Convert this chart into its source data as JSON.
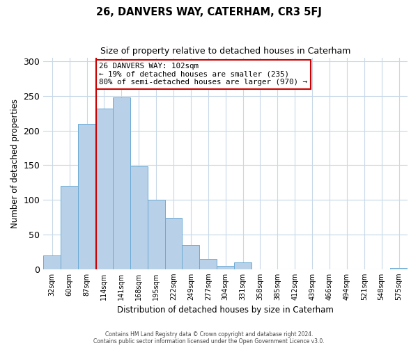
{
  "title": "26, DANVERS WAY, CATERHAM, CR3 5FJ",
  "subtitle": "Size of property relative to detached houses in Caterham",
  "xlabel": "Distribution of detached houses by size in Caterham",
  "ylabel": "Number of detached properties",
  "bar_labels": [
    "32sqm",
    "60sqm",
    "87sqm",
    "114sqm",
    "141sqm",
    "168sqm",
    "195sqm",
    "222sqm",
    "249sqm",
    "277sqm",
    "304sqm",
    "331sqm",
    "358sqm",
    "385sqm",
    "412sqm",
    "439sqm",
    "466sqm",
    "494sqm",
    "521sqm",
    "548sqm",
    "575sqm"
  ],
  "bar_values": [
    20,
    120,
    210,
    232,
    248,
    148,
    100,
    74,
    35,
    15,
    5,
    10,
    0,
    0,
    0,
    0,
    0,
    0,
    0,
    0,
    2
  ],
  "bar_color": "#b8d0e8",
  "bar_edge_color": "#6aaad4",
  "vline_color": "#cc0000",
  "annotation_text": "26 DANVERS WAY: 102sqm\n← 19% of detached houses are smaller (235)\n80% of semi-detached houses are larger (970) →",
  "annotation_box_color": "#ffffff",
  "annotation_box_edge_color": "#cc0000",
  "ylim": [
    0,
    305
  ],
  "yticks": [
    0,
    50,
    100,
    150,
    200,
    250,
    300
  ],
  "footer_line1": "Contains HM Land Registry data © Crown copyright and database right 2024.",
  "footer_line2": "Contains public sector information licensed under the Open Government Licence v3.0.",
  "background_color": "#ffffff",
  "grid_color": "#c8d8e8",
  "vline_bar_index": 2.56
}
